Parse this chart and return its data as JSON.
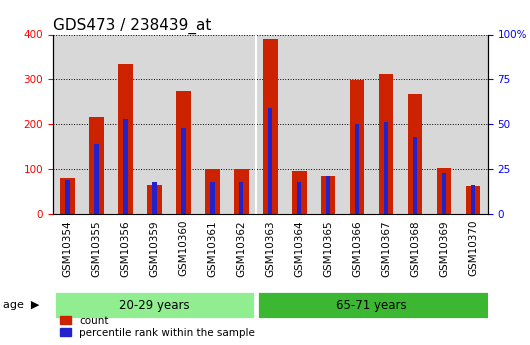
{
  "title": "GDS473 / 238439_at",
  "categories": [
    "GSM10354",
    "GSM10355",
    "GSM10356",
    "GSM10359",
    "GSM10360",
    "GSM10361",
    "GSM10362",
    "GSM10363",
    "GSM10364",
    "GSM10365",
    "GSM10366",
    "GSM10367",
    "GSM10368",
    "GSM10369",
    "GSM10370"
  ],
  "count_values": [
    80,
    215,
    335,
    65,
    275,
    100,
    100,
    390,
    95,
    85,
    298,
    312,
    268,
    103,
    62
  ],
  "percentile_values": [
    19,
    39,
    53,
    18,
    48,
    18,
    18,
    59,
    18,
    21,
    50,
    51,
    43,
    23,
    16
  ],
  "group1_label": "20-29 years",
  "group2_label": "65-71 years",
  "group1_count": 7,
  "group2_count": 8,
  "group1_color": "#90EE90",
  "group2_color": "#3CB731",
  "bar_color_red": "#CC2200",
  "bar_color_blue": "#2222CC",
  "ylim_left": [
    0,
    400
  ],
  "ylim_right": [
    0,
    100
  ],
  "yticks_left": [
    0,
    100,
    200,
    300,
    400
  ],
  "yticks_right": [
    0,
    25,
    50,
    75,
    100
  ],
  "ytick_labels_right": [
    "0",
    "25",
    "50",
    "75",
    "100%"
  ],
  "bg_color": "#D8D8D8",
  "plot_bg_color": "#D8D8D8",
  "legend_count_label": "count",
  "legend_pct_label": "percentile rank within the sample",
  "age_label": "age",
  "title_fontsize": 11,
  "tick_fontsize": 7.5,
  "bar_width": 0.5,
  "blue_bar_width": 0.15
}
